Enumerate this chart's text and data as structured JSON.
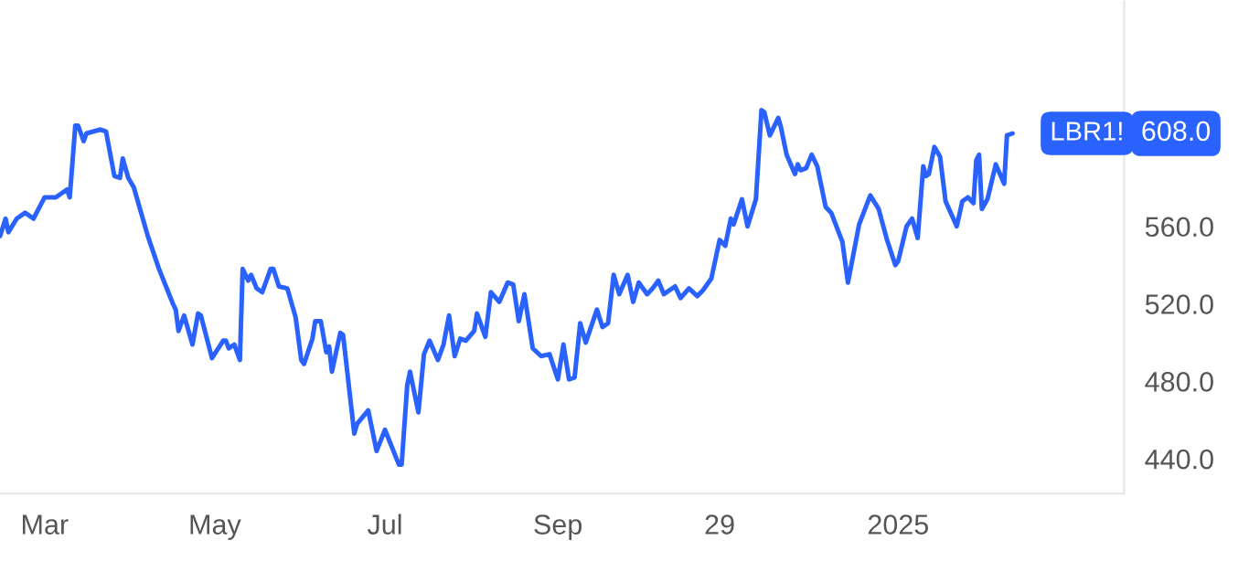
{
  "chart_data": {
    "type": "line",
    "x": [
      "2024-02-14",
      "2024-02-16",
      "2024-02-17",
      "2024-02-20",
      "2024-02-23",
      "2024-02-26",
      "2024-03-01",
      "2024-03-05",
      "2024-03-09",
      "2024-03-10",
      "2024-03-12",
      "2024-03-13",
      "2024-03-15",
      "2024-03-16",
      "2024-03-21",
      "2024-03-23",
      "2024-03-26",
      "2024-03-28",
      "2024-03-29",
      "2024-03-31",
      "2024-04-02",
      "2024-04-07",
      "2024-04-11",
      "2024-04-16",
      "2024-04-17",
      "2024-04-18",
      "2024-04-20",
      "2024-04-23",
      "2024-04-25",
      "2024-04-26",
      "2024-04-28",
      "2024-04-30",
      "2024-05-04",
      "2024-05-05",
      "2024-05-06",
      "2024-05-08",
      "2024-05-10",
      "2024-05-11",
      "2024-05-13",
      "2024-05-14",
      "2024-05-16",
      "2024-05-18",
      "2024-05-21",
      "2024-05-22",
      "2024-05-24",
      "2024-05-27",
      "2024-05-30",
      "2024-06-01",
      "2024-06-02",
      "2024-06-05",
      "2024-06-06",
      "2024-06-08",
      "2024-06-10",
      "2024-06-11",
      "2024-06-12",
      "2024-06-15",
      "2024-06-16",
      "2024-06-20",
      "2024-06-21",
      "2024-06-25",
      "2024-06-28",
      "2024-07-01",
      "2024-07-06",
      "2024-07-07",
      "2024-07-09",
      "2024-07-10",
      "2024-07-13",
      "2024-07-15",
      "2024-07-17",
      "2024-07-20",
      "2024-07-22",
      "2024-07-24",
      "2024-07-26",
      "2024-07-28",
      "2024-07-30",
      "2024-08-02",
      "2024-08-03",
      "2024-08-06",
      "2024-08-08",
      "2024-08-11",
      "2024-08-14",
      "2024-08-16",
      "2024-08-18",
      "2024-08-20",
      "2024-08-23",
      "2024-08-26",
      "2024-08-29",
      "2024-09-01",
      "2024-09-03",
      "2024-09-05",
      "2024-09-07",
      "2024-09-09",
      "2024-09-11",
      "2024-09-15",
      "2024-09-17",
      "2024-09-19",
      "2024-09-21",
      "2024-09-23",
      "2024-09-26",
      "2024-09-28",
      "2024-09-30",
      "2024-10-03",
      "2024-10-05",
      "2024-10-07",
      "2024-10-09",
      "2024-10-13",
      "2024-10-15",
      "2024-10-18",
      "2024-10-21",
      "2024-10-23",
      "2024-10-26",
      "2024-10-29",
      "2024-10-31",
      "2024-11-02",
      "2024-11-03",
      "2024-11-06",
      "2024-11-08",
      "2024-11-11",
      "2024-11-13",
      "2024-11-14",
      "2024-11-16",
      "2024-11-19",
      "2024-11-20",
      "2024-11-22",
      "2024-11-25",
      "2024-11-26",
      "2024-11-27",
      "2024-11-29",
      "2024-12-01",
      "2024-12-03",
      "2024-12-06",
      "2024-12-08",
      "2024-12-12",
      "2024-12-14",
      "2024-12-18",
      "2024-12-22",
      "2024-12-25",
      "2024-12-28",
      "2024-12-31",
      "2025-01-01",
      "2025-01-04",
      "2025-01-06",
      "2025-01-08",
      "2025-01-10",
      "2025-01-11",
      "2025-01-12",
      "2025-01-14",
      "2025-01-16",
      "2025-01-18",
      "2025-01-22",
      "2025-01-24",
      "2025-01-26",
      "2025-01-28",
      "2025-01-29",
      "2025-01-30",
      "2025-01-31",
      "2025-02-02",
      "2025-02-05",
      "2025-02-08",
      "2025-02-09",
      "2025-02-11"
    ],
    "series": [
      {
        "name": "LBR1!",
        "color": "#2962ff",
        "values": [
          555,
          564,
          557,
          564,
          567,
          564,
          575,
          575,
          579,
          575,
          612,
          612,
          604,
          608,
          610,
          609,
          586,
          585,
          595,
          585,
          580,
          555,
          538,
          520,
          517,
          506,
          514,
          499,
          515,
          514,
          503,
          492,
          501,
          501,
          497,
          499,
          491,
          538,
          532,
          535,
          528,
          526,
          538,
          538,
          529,
          528,
          513,
          491,
          489,
          502,
          511,
          511,
          495,
          498,
          485,
          505,
          504,
          453,
          458,
          465,
          444,
          455,
          437,
          437,
          478,
          485,
          464,
          494,
          501,
          491,
          499,
          514,
          493,
          502,
          501,
          506,
          515,
          503,
          526,
          521,
          531,
          530,
          511,
          525,
          497,
          493,
          494,
          481,
          499,
          481,
          482,
          510,
          500,
          517,
          508,
          510,
          535,
          525,
          535,
          521,
          531,
          525,
          528,
          532,
          525,
          529,
          523,
          528,
          524,
          527,
          533,
          553,
          550,
          564,
          561,
          574,
          560,
          574,
          620,
          619,
          607,
          616,
          611,
          597,
          587,
          592,
          589,
          590,
          597,
          591,
          570,
          567,
          552,
          531,
          561,
          576,
          569,
          553,
          540,
          542,
          560,
          564,
          554,
          591,
          586,
          587,
          601,
          596,
          573,
          560,
          573,
          575,
          572,
          594,
          597,
          569,
          574,
          592,
          582,
          607,
          608
        ]
      }
    ],
    "xlim": [
      "2024-02-14",
      "2025-03-23"
    ],
    "ylim": [
      422,
      676
    ],
    "xticks": [
      {
        "value": "2024-03-01",
        "label": "Mar"
      },
      {
        "value": "2024-05-01",
        "label": "May"
      },
      {
        "value": "2024-07-01",
        "label": "Jul"
      },
      {
        "value": "2024-09-01",
        "label": "Sep"
      },
      {
        "value": "2024-10-29",
        "label": "29"
      },
      {
        "value": "2025-01-01",
        "label": "2025"
      }
    ],
    "yticks": [
      {
        "value": 440,
        "label": "440.0"
      },
      {
        "value": 480,
        "label": "480.0"
      },
      {
        "value": 520,
        "label": "520.0"
      },
      {
        "value": 560,
        "label": "560.0"
      }
    ],
    "annotations": [
      "608.0"
    ],
    "grid": false,
    "legend": "right",
    "marker": "none",
    "line_style": "solid"
  }
}
